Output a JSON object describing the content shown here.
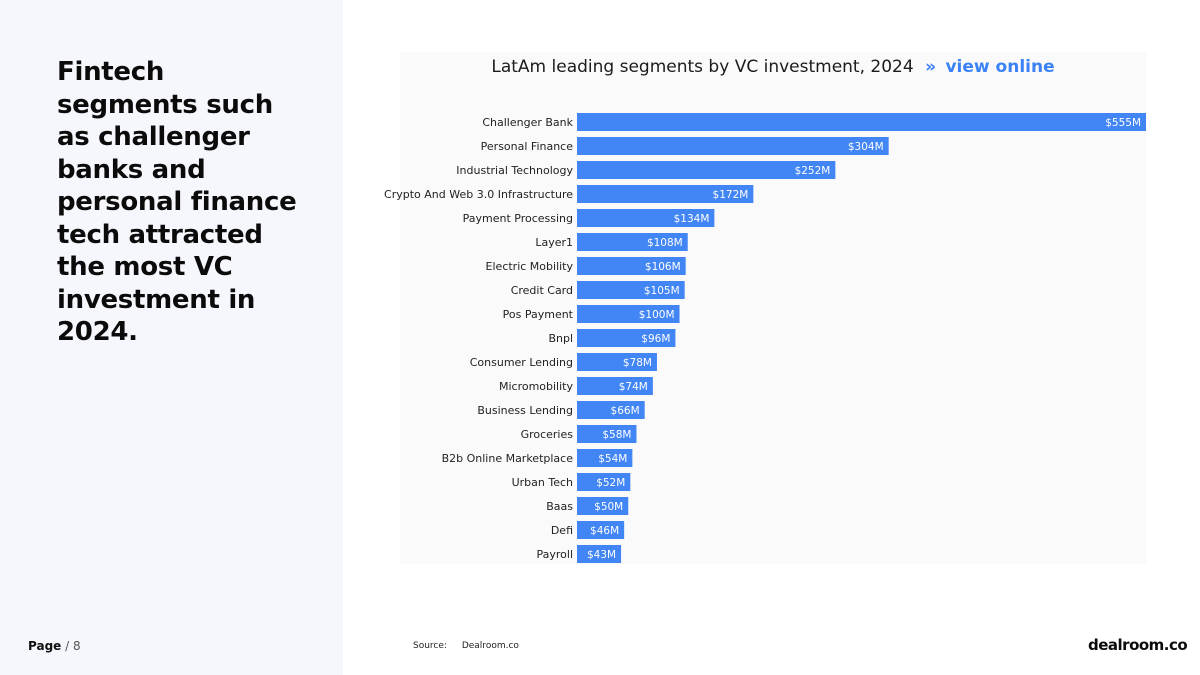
{
  "headline": "Fintech segments such as challenger banks and personal finance tech attracted the most VC investment in 2024.",
  "footer": {
    "page_label": "Page",
    "page_separator": "/",
    "page_number": "8",
    "source_label": "Source:",
    "source_value": "Dealroom.co",
    "logo_text": "dealroom.co"
  },
  "chart_title": {
    "text": "LatAm leading segments by VC investment, 2024",
    "arrow": "»",
    "link_text": "view online"
  },
  "colors": {
    "bar": "#4285f4",
    "accent_link": "#3b82f6",
    "left_panel_bg": "#f5f7fc"
  },
  "chart_data": {
    "type": "bar",
    "orientation": "horizontal",
    "title": "LatAm leading segments by VC investment, 2024",
    "xlabel": "",
    "ylabel": "",
    "unit": "$M",
    "xlim": [
      0,
      555
    ],
    "grid": false,
    "categories": [
      "Challenger Bank",
      "Personal Finance",
      "Industrial Technology",
      "Crypto And Web 3.0 Infrastructure",
      "Payment Processing",
      "Layer1",
      "Electric Mobility",
      "Credit Card",
      "Pos Payment",
      "Bnpl",
      "Consumer Lending",
      "Micromobility",
      "Business Lending",
      "Groceries",
      "B2b Online Marketplace",
      "Urban Tech",
      "Baas",
      "Defi",
      "Payroll"
    ],
    "values": [
      555,
      304,
      252,
      172,
      134,
      108,
      106,
      105,
      100,
      96,
      78,
      74,
      66,
      58,
      54,
      52,
      50,
      46,
      43
    ],
    "labels": [
      "$555M",
      "$304M",
      "$252M",
      "$172M",
      "$134M",
      "$108M",
      "$106M",
      "$105M",
      "$100M",
      "$96M",
      "$78M",
      "$74M",
      "$66M",
      "$58M",
      "$54M",
      "$52M",
      "$50M",
      "$46M",
      "$43M"
    ]
  }
}
